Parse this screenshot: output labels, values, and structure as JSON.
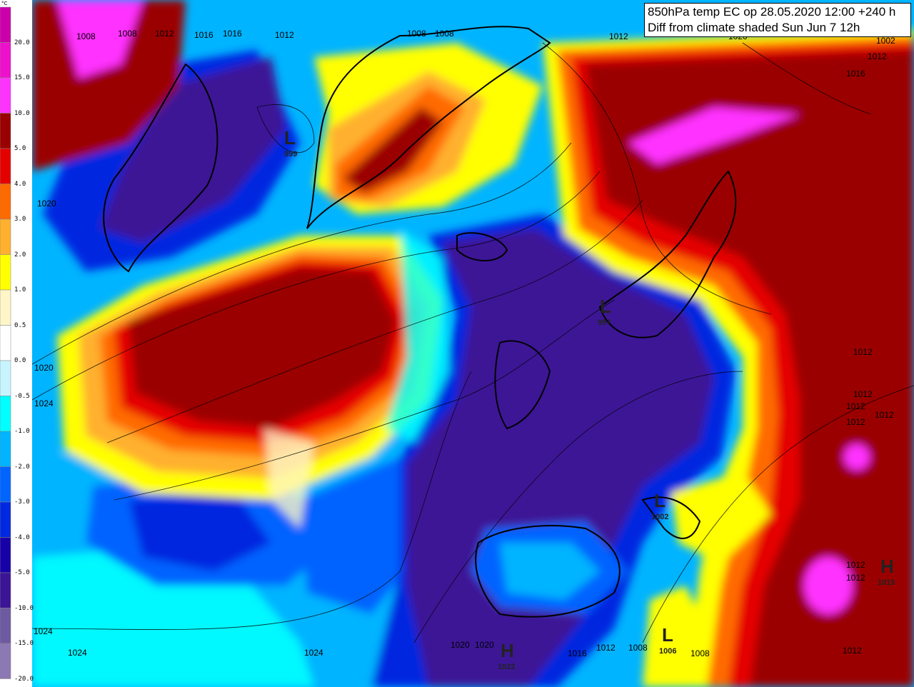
{
  "title": {
    "line1": "850hPa temp EC op 28.05.2020 12:00 +240 h",
    "line2": "Diff from climate shaded Sun Jun 7 12h"
  },
  "legend": {
    "unit": "°C",
    "bands": [
      {
        "label": "20.0",
        "color": "#cc00aa"
      },
      {
        "label": "15.0",
        "color": "#ee11cc"
      },
      {
        "label": "10.0",
        "color": "#ff33ff"
      },
      {
        "label": "5.0",
        "color": "#9b0000"
      },
      {
        "label": "4.0",
        "color": "#e50000"
      },
      {
        "label": "3.0",
        "color": "#ff6a00"
      },
      {
        "label": "2.0",
        "color": "#ffb02e"
      },
      {
        "label": "1.0",
        "color": "#ffff00"
      },
      {
        "label": "0.5",
        "color": "#fff6c8"
      },
      {
        "label": "0.0",
        "color": "#ffffff"
      },
      {
        "label": "-0.5",
        "color": "#c8f4ff"
      },
      {
        "label": "-1.0",
        "color": "#00ffff"
      },
      {
        "label": "-2.0",
        "color": "#00b4ff"
      },
      {
        "label": "-3.0",
        "color": "#0064ff"
      },
      {
        "label": "-4.0",
        "color": "#0028e0"
      },
      {
        "label": "-5.0",
        "color": "#1800a8"
      },
      {
        "label": "-10.0",
        "color": "#3c1496"
      },
      {
        "label": "-15.0",
        "color": "#6e5aa0"
      },
      {
        "label": "-20.0",
        "color": "#8c78b4"
      }
    ]
  },
  "isobar_labels": [
    {
      "id": "1008a",
      "text": "1008"
    },
    {
      "id": "1008b",
      "text": "1008"
    },
    {
      "id": "1012a",
      "text": "1012"
    },
    {
      "id": "1016a",
      "text": "1016"
    },
    {
      "id": "1016b",
      "text": "1016"
    },
    {
      "id": "1012b",
      "text": "1012"
    },
    {
      "id": "1008c",
      "text": "1008"
    },
    {
      "id": "1008d",
      "text": "1008"
    },
    {
      "id": "1012c",
      "text": "1012"
    },
    {
      "id": "1020a",
      "text": "1020"
    },
    {
      "id": "1002a",
      "text": "1002"
    },
    {
      "id": "1012d",
      "text": "1012"
    },
    {
      "id": "1016c",
      "text": "1016"
    },
    {
      "id": "1020b",
      "text": "1020"
    },
    {
      "id": "1020c",
      "text": "1020"
    },
    {
      "id": "1024a",
      "text": "1024"
    },
    {
      "id": "1012e",
      "text": "1012"
    },
    {
      "id": "1012f",
      "text": "1012"
    },
    {
      "id": "1012g",
      "text": "1012"
    },
    {
      "id": "1012h",
      "text": "1012"
    },
    {
      "id": "1024b",
      "text": "1024"
    },
    {
      "id": "1024c",
      "text": "1024"
    },
    {
      "id": "1024d",
      "text": "1024"
    },
    {
      "id": "1020d",
      "text": "1020"
    },
    {
      "id": "1020e",
      "text": "1020"
    },
    {
      "id": "1016d",
      "text": "1016"
    },
    {
      "id": "1012i",
      "text": "1012"
    },
    {
      "id": "1008e",
      "text": "1008"
    },
    {
      "id": "1008f",
      "text": "1008"
    },
    {
      "id": "1012j",
      "text": "1012"
    },
    {
      "id": "1012k",
      "text": "1012"
    },
    {
      "id": "1012l",
      "text": "1012"
    },
    {
      "id": "1012m",
      "text": "1012"
    }
  ],
  "pressure_centers": [
    {
      "id": "low-greenland",
      "letter": "L",
      "value": "999"
    },
    {
      "id": "low-norway",
      "letter": "L",
      "value": "997"
    },
    {
      "id": "low-genoa",
      "letter": "L",
      "value": "1002"
    },
    {
      "id": "low-algeria",
      "letter": "L",
      "value": "1006"
    },
    {
      "id": "high-morocco",
      "letter": "H",
      "value": "1022"
    },
    {
      "id": "high-balkans",
      "letter": "H",
      "value": "1015"
    }
  ]
}
